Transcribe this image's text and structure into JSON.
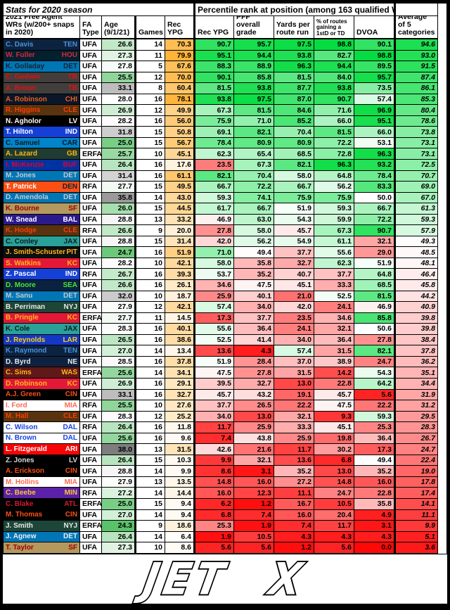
{
  "header": {
    "stats_title": "Stats for 2020 season",
    "percentile_title": "Percentile rank at position (among 163 qualified WRs)",
    "col_player": "2021 Free Agent WRs (w/200+ snaps in 2020)",
    "col_fa": "FA Type",
    "col_age": "Age (9/1/21)",
    "col_games": "Games",
    "col_recypg": "Rec YPG",
    "pct_cols": [
      "Rec YPG",
      "PFF overall grade",
      "Yards per route run",
      "% of routes gaining a 1stD or TD",
      "DVOA"
    ],
    "col_avg": "Average of 5 categories"
  },
  "heatmap": {
    "low": "#FF0808",
    "mid": "#FFFFFF",
    "high": "#00DB3C",
    "ypg_high": "#FFB339",
    "age_young": "#5AC26A",
    "age_old": "#7E7E7E"
  },
  "logo": {
    "text": "JET X"
  },
  "chart_data": {
    "type": "table",
    "title": "Stats for 2020 season — Percentile rank at position (among 163 qualified WRs)",
    "columns": [
      "2021 Free Agent WRs (w/200+ snaps in 2020)",
      "FA Type",
      "Age (9/1/21)",
      "Games",
      "Rec YPG",
      "Rec YPG pct",
      "PFF overall grade pct",
      "Yards per route run pct",
      "% of routes gaining a 1stD or TD pct",
      "DVOA pct",
      "Average of 5 categories"
    ],
    "rows": [
      {
        "n": "C. Davis",
        "t": "TEN",
        "fa": "UFA",
        "age": 26.6,
        "g": 14,
        "ypg": 70.3,
        "p": [
          90.7,
          95.7,
          97.5,
          98.8,
          90.1
        ],
        "avg": 94.6,
        "bg": "#0C2340",
        "fg": "#4B92DB"
      },
      {
        "n": "W. Fuller",
        "t": "HOU",
        "fa": "UFA",
        "age": 27.3,
        "g": 11,
        "ypg": 79.9,
        "p": [
          95.1,
          94.4,
          93.8,
          82.7,
          98.8
        ],
        "avg": 93.0,
        "bg": "#03202F",
        "fg": "#D6283C"
      },
      {
        "n": "K. Golladay",
        "t": "DET",
        "fa": "UFA",
        "age": 27.8,
        "g": 5,
        "ypg": 67.6,
        "p": [
          88.3,
          88.9,
          96.3,
          94.4,
          89.5
        ],
        "avg": 91.5,
        "bg": "#0076B6",
        "fg": "#15222B"
      },
      {
        "n": "C. Godwin",
        "t": "TB",
        "fa": "UFA",
        "age": 25.5,
        "g": 12,
        "ypg": 70.0,
        "p": [
          90.1,
          85.8,
          81.5,
          84.0,
          95.7
        ],
        "avg": 87.4,
        "bg": "#413E3C",
        "fg": "#E01010"
      },
      {
        "n": "A. Brown",
        "t": "TB",
        "fa": "UFA",
        "age": 33.1,
        "g": 8,
        "ypg": 60.4,
        "p": [
          81.5,
          93.8,
          87.7,
          93.8,
          73.5
        ],
        "avg": 86.1,
        "bg": "#413E3C",
        "fg": "#E01010"
      },
      {
        "n": "A. Robinson",
        "t": "CHI",
        "fa": "UFA",
        "age": 28.0,
        "g": 16,
        "ypg": 78.1,
        "p": [
          93.8,
          97.5,
          87.0,
          90.7,
          57.4
        ],
        "avg": 85.3,
        "bg": "#0B162A",
        "fg": "#E8601C"
      },
      {
        "n": "R. Higgins",
        "t": "CLE",
        "fa": "UFA",
        "age": 26.9,
        "g": 12,
        "ypg": 49.9,
        "p": [
          67.3,
          81.5,
          84.6,
          71.6,
          96.9
        ],
        "avg": 80.4,
        "bg": "#58330F",
        "fg": "#FF3C00"
      },
      {
        "n": "N. Agholor",
        "t": "LV",
        "fa": "UFA",
        "age": 28.2,
        "g": 16,
        "ypg": 56.0,
        "p": [
          75.9,
          71.0,
          85.2,
          66.0,
          95.1
        ],
        "avg": 78.6,
        "bg": "#000000",
        "fg": "#FFFFFF"
      },
      {
        "n": "T. Hilton",
        "t": "IND",
        "fa": "UFA",
        "age": 31.8,
        "g": 15,
        "ypg": 50.8,
        "p": [
          69.1,
          82.1,
          70.4,
          81.5,
          66.0
        ],
        "avg": 73.8,
        "bg": "#1540D8",
        "fg": "#FFFFFF"
      },
      {
        "n": "C. Samuel",
        "t": "CAR",
        "fa": "UFA",
        "age": 25.0,
        "g": 15,
        "ypg": 56.7,
        "p": [
          78.4,
          80.9,
          80.9,
          72.2,
          53.1
        ],
        "avg": 73.1,
        "bg": "#0085CA",
        "fg": "#101820"
      },
      {
        "n": "A. Lazard",
        "t": "GB",
        "fa": "ERFA",
        "age": 25.7,
        "g": 10,
        "ypg": 45.1,
        "p": [
          62.3,
          65.4,
          68.5,
          72.8,
          96.3
        ],
        "avg": 73.1,
        "bg": "#1E3C31",
        "fg": "#FFB612"
      },
      {
        "n": "I. McKenzie",
        "t": "BUF",
        "fa": "UFA",
        "age": 26.4,
        "g": 16,
        "ypg": 17.6,
        "p": [
          23.5,
          67.3,
          82.1,
          96.3,
          93.2
        ],
        "avg": 72.5,
        "bg": "#0033A0",
        "fg": "#E4002B"
      },
      {
        "n": "M. Jones",
        "t": "DET",
        "fa": "UFA",
        "age": 31.4,
        "g": 16,
        "ypg": 61.1,
        "p": [
          82.1,
          70.4,
          58.0,
          64.8,
          78.4
        ],
        "avg": 70.7,
        "bg": "#0076B6",
        "fg": "#C3C9CE"
      },
      {
        "n": "T. Patrick",
        "t": "DEN",
        "fa": "RFA",
        "age": 27.7,
        "g": 15,
        "ypg": 49.5,
        "p": [
          66.7,
          72.2,
          66.7,
          56.2,
          83.3
        ],
        "avg": 69.0,
        "bg": "#FB4F14",
        "fg": "#FFFFFF",
        "afg": "#0A2343"
      },
      {
        "n": "D. Amendola",
        "t": "DET",
        "fa": "UFA",
        "age": 35.8,
        "g": 14,
        "ypg": 43.0,
        "p": [
          59.3,
          74.1,
          75.9,
          75.9,
          50.0
        ],
        "avg": 67.0,
        "bg": "#0076B6",
        "fg": "#C3C9CE"
      },
      {
        "n": "K. Bourne",
        "t": "SF",
        "fa": "UFA",
        "age": 26.0,
        "g": 15,
        "ypg": 44.5,
        "p": [
          61.7,
          66.7,
          51.9,
          59.3,
          66.7
        ],
        "avg": 61.3,
        "bg": "#B3995D",
        "fg": "#A00000"
      },
      {
        "n": "W. Snead",
        "t": "BAL",
        "fa": "UFA",
        "age": 28.8,
        "g": 13,
        "ypg": 33.2,
        "p": [
          46.9,
          63.0,
          54.3,
          59.9,
          72.2
        ],
        "avg": 59.3,
        "bg": "#2A1A8C",
        "fg": "#FFFFFF"
      },
      {
        "n": "K. Hodge",
        "t": "CLE",
        "fa": "RFA",
        "age": 26.6,
        "g": 9,
        "ypg": 20.0,
        "p": [
          27.8,
          58.0,
          45.7,
          67.3,
          90.7
        ],
        "avg": 57.9,
        "bg": "#58330F",
        "fg": "#FF3C00"
      },
      {
        "n": "C. Conley",
        "t": "JAX",
        "fa": "UFA",
        "age": 28.8,
        "g": 15,
        "ypg": 31.4,
        "p": [
          42.0,
          56.2,
          54.9,
          61.1,
          32.1
        ],
        "avg": 49.3,
        "bg": "#2AA198",
        "fg": "#101820"
      },
      {
        "n": "J. Smith-Schuster",
        "t": "PIT",
        "fa": "UFA",
        "age": 24.7,
        "g": 16,
        "ypg": 51.9,
        "p": [
          71.0,
          49.4,
          37.7,
          55.6,
          29.0
        ],
        "avg": 48.5,
        "bg": "#0B0E12",
        "fg": "#FFB612"
      },
      {
        "n": "S. Watkins",
        "t": "KC",
        "fa": "UFA",
        "age": 28.2,
        "g": 10,
        "ypg": 42.1,
        "p": [
          58.0,
          35.8,
          32.7,
          62.3,
          51.9
        ],
        "avg": 48.1,
        "bg": "#E31837",
        "fg": "#FFB81C"
      },
      {
        "n": "Z. Pascal",
        "t": "IND",
        "fa": "RFA",
        "age": 26.7,
        "g": 16,
        "ypg": 39.3,
        "p": [
          53.7,
          35.2,
          40.7,
          37.7,
          64.8
        ],
        "avg": 46.4,
        "bg": "#1540D8",
        "fg": "#FFFFFF"
      },
      {
        "n": "D. Moore",
        "t": "SEA",
        "fa": "UFA",
        "age": 26.6,
        "g": 16,
        "ypg": 26.1,
        "p": [
          34.6,
          47.5,
          45.1,
          33.3,
          68.5
        ],
        "avg": 45.8,
        "bg": "#0A2240",
        "fg": "#4BE62E"
      },
      {
        "n": "M. Sanu",
        "t": "DET",
        "fa": "UFA",
        "age": 32.0,
        "g": 10,
        "ypg": 18.7,
        "p": [
          25.9,
          40.1,
          21.0,
          52.5,
          81.5
        ],
        "avg": 44.2,
        "bg": "#0076B6",
        "fg": "#C3C9CE"
      },
      {
        "n": "B. Perriman",
        "t": "NYJ",
        "fa": "UFA",
        "age": 27.9,
        "g": 12,
        "ypg": 42.1,
        "p": [
          57.4,
          34.0,
          42.0,
          24.1,
          46.9
        ],
        "avg": 40.9,
        "bg": "#1E4638",
        "fg": "#E6EAE6"
      },
      {
        "n": "B. Pringle",
        "t": "KC",
        "fa": "ERFA",
        "age": 27.7,
        "g": 11,
        "ypg": 14.5,
        "p": [
          17.3,
          37.7,
          23.5,
          34.6,
          85.8
        ],
        "avg": 39.8,
        "bg": "#E31837",
        "fg": "#FFB81C"
      },
      {
        "n": "K. Cole",
        "t": "JAX",
        "fa": "UFA",
        "age": 28.3,
        "g": 16,
        "ypg": 40.1,
        "p": [
          55.6,
          36.4,
          24.1,
          32.1,
          50.6
        ],
        "avg": 39.8,
        "bg": "#2AA198",
        "fg": "#101820"
      },
      {
        "n": "J. Reynolds",
        "t": "LAR",
        "fa": "UFA",
        "age": 26.5,
        "g": 16,
        "ypg": 38.6,
        "p": [
          52.5,
          41.4,
          34.0,
          36.4,
          27.8
        ],
        "avg": 38.4,
        "bg": "#1437C8",
        "fg": "#FFD100"
      },
      {
        "n": "K. Raymond",
        "t": "TEN",
        "fa": "UFA",
        "age": 27.0,
        "g": 14,
        "ypg": 13.4,
        "p": [
          13.6,
          4.3,
          57.4,
          31.5,
          82.1
        ],
        "avg": 37.8,
        "bg": "#0C2340",
        "fg": "#4B92DB"
      },
      {
        "n": "D. Byrd",
        "t": "NE",
        "fa": "UFA",
        "age": 28.5,
        "g": 16,
        "ypg": 37.8,
        "p": [
          51.9,
          28.4,
          37.0,
          38.9,
          24.7
        ],
        "avg": 36.2,
        "bg": "#0E2240",
        "fg": "#E8EAEC"
      },
      {
        "n": "C. Sims",
        "t": "WAS",
        "fa": "ERFA",
        "age": 25.6,
        "g": 14,
        "ypg": 34.1,
        "p": [
          47.5,
          27.8,
          31.5,
          14.2,
          54.3
        ],
        "avg": 35.1,
        "bg": "#611818",
        "fg": "#FFB612"
      },
      {
        "n": "D. Robinson",
        "t": "KC",
        "fa": "UFA",
        "age": 26.9,
        "g": 16,
        "ypg": 29.1,
        "p": [
          39.5,
          32.7,
          13.0,
          22.8,
          64.2
        ],
        "avg": 34.4,
        "bg": "#E31837",
        "fg": "#FFB81C"
      },
      {
        "n": "A.J. Green",
        "t": "CIN",
        "fa": "UFA",
        "age": 33.1,
        "g": 16,
        "ypg": 32.7,
        "p": [
          45.7,
          43.2,
          19.1,
          45.7,
          5.6
        ],
        "avg": 31.9,
        "bg": "#000000",
        "fg": "#FB4F14"
      },
      {
        "n": "I. Ford",
        "t": "MIA",
        "fa": "RFA",
        "age": 25.5,
        "g": 10,
        "ypg": 27.6,
        "p": [
          37.7,
          26.5,
          22.2,
          47.5,
          22.2
        ],
        "avg": 31.2,
        "bg": "#FFFFFF",
        "fg": "#FB6B4F"
      },
      {
        "n": "M. Hall",
        "t": "CLE",
        "fa": "UFA",
        "age": 28.3,
        "g": 12,
        "ypg": 25.2,
        "p": [
          34.0,
          13.0,
          32.1,
          9.3,
          59.3
        ],
        "avg": 29.5,
        "bg": "#58330F",
        "fg": "#FF3C00"
      },
      {
        "n": "C. Wilson",
        "t": "DAL",
        "fa": "RFA",
        "age": 26.4,
        "g": 16,
        "ypg": 11.8,
        "p": [
          11.7,
          25.9,
          33.3,
          45.1,
          25.3
        ],
        "avg": 28.3,
        "bg": "#FFFFFF",
        "fg": "#1540E8"
      },
      {
        "n": "N. Brown",
        "t": "DAL",
        "fa": "UFA",
        "age": 25.6,
        "g": 16,
        "ypg": 9.6,
        "p": [
          7.4,
          43.8,
          25.9,
          19.8,
          36.4
        ],
        "avg": 26.7,
        "bg": "#FFFFFF",
        "fg": "#1540E8"
      },
      {
        "n": "L. Fitzgerald",
        "t": "ARI",
        "fa": "UFA",
        "age": 38.0,
        "g": 13,
        "ypg": 31.5,
        "p": [
          42.6,
          21.6,
          11.7,
          30.2,
          17.3
        ],
        "avg": 24.7,
        "bg": "#F50505",
        "fg": "#FFFFFF"
      },
      {
        "n": "Z. Jones",
        "t": "LV",
        "fa": "UFA",
        "age": 26.4,
        "g": 15,
        "ypg": 10.3,
        "p": [
          9.9,
          32.1,
          13.6,
          6.8,
          49.4
        ],
        "avg": 22.4,
        "bg": "#000000",
        "fg": "#D5D8DA"
      },
      {
        "n": "A. Erickson",
        "t": "CIN",
        "fa": "UFA",
        "age": 28.8,
        "g": 14,
        "ypg": 9.9,
        "p": [
          8.6,
          3.1,
          35.2,
          13.0,
          35.2
        ],
        "avg": 19.0,
        "bg": "#000000",
        "fg": "#FB4F14"
      },
      {
        "n": "M. Hollins",
        "t": "MIA",
        "fa": "UFA",
        "age": 27.9,
        "g": 13,
        "ypg": 13.5,
        "p": [
          14.8,
          16.0,
          27.2,
          14.8,
          16.0
        ],
        "avg": 17.8,
        "bg": "#FFFFFF",
        "fg": "#FB6B4F"
      },
      {
        "n": "C. Beebe",
        "t": "MIN",
        "fa": "RFA",
        "age": 27.2,
        "g": 14,
        "ypg": 14.4,
        "p": [
          16.0,
          12.3,
          11.1,
          24.7,
          22.8
        ],
        "avg": 17.4,
        "bg": "#5B21A8",
        "fg": "#FFC62F"
      },
      {
        "n": "C. Blake",
        "t": "ATL",
        "fa": "ERFA",
        "age": 25.0,
        "g": 15,
        "ypg": 9.4,
        "p": [
          6.2,
          1.2,
          16.7,
          10.5,
          35.8
        ],
        "avg": 14.1,
        "bg": "#000000",
        "fg": "#D61A32"
      },
      {
        "n": "M. Thomas",
        "t": "CIN",
        "fa": "UFA",
        "age": 27.0,
        "g": 14,
        "ypg": 9.4,
        "p": [
          6.8,
          7.4,
          16.0,
          20.4,
          4.9
        ],
        "avg": 11.1,
        "bg": "#000000",
        "fg": "#FB4F14"
      },
      {
        "n": "J. Smith",
        "t": "NYJ",
        "fa": "ERFA",
        "age": 24.3,
        "g": 9,
        "ypg": 18.6,
        "p": [
          25.3,
          1.9,
          7.4,
          11.7,
          3.1
        ],
        "avg": 9.9,
        "bg": "#1E4638",
        "fg": "#E6EAE6"
      },
      {
        "n": "J. Agnew",
        "t": "DET",
        "fa": "UFA",
        "age": 26.4,
        "g": 14,
        "ypg": 6.4,
        "p": [
          1.9,
          10.5,
          4.3,
          4.3,
          4.3
        ],
        "avg": 5.1,
        "bg": "#0076B6",
        "fg": "#E8EDF0"
      },
      {
        "n": "T. Taylor",
        "t": "SF",
        "fa": "UFA",
        "age": 27.3,
        "g": 10,
        "ypg": 8.6,
        "p": [
          5.6,
          5.6,
          1.2,
          5.6,
          0.0
        ],
        "avg": 3.6,
        "bg": "#B3995D",
        "fg": "#A00000"
      }
    ]
  }
}
